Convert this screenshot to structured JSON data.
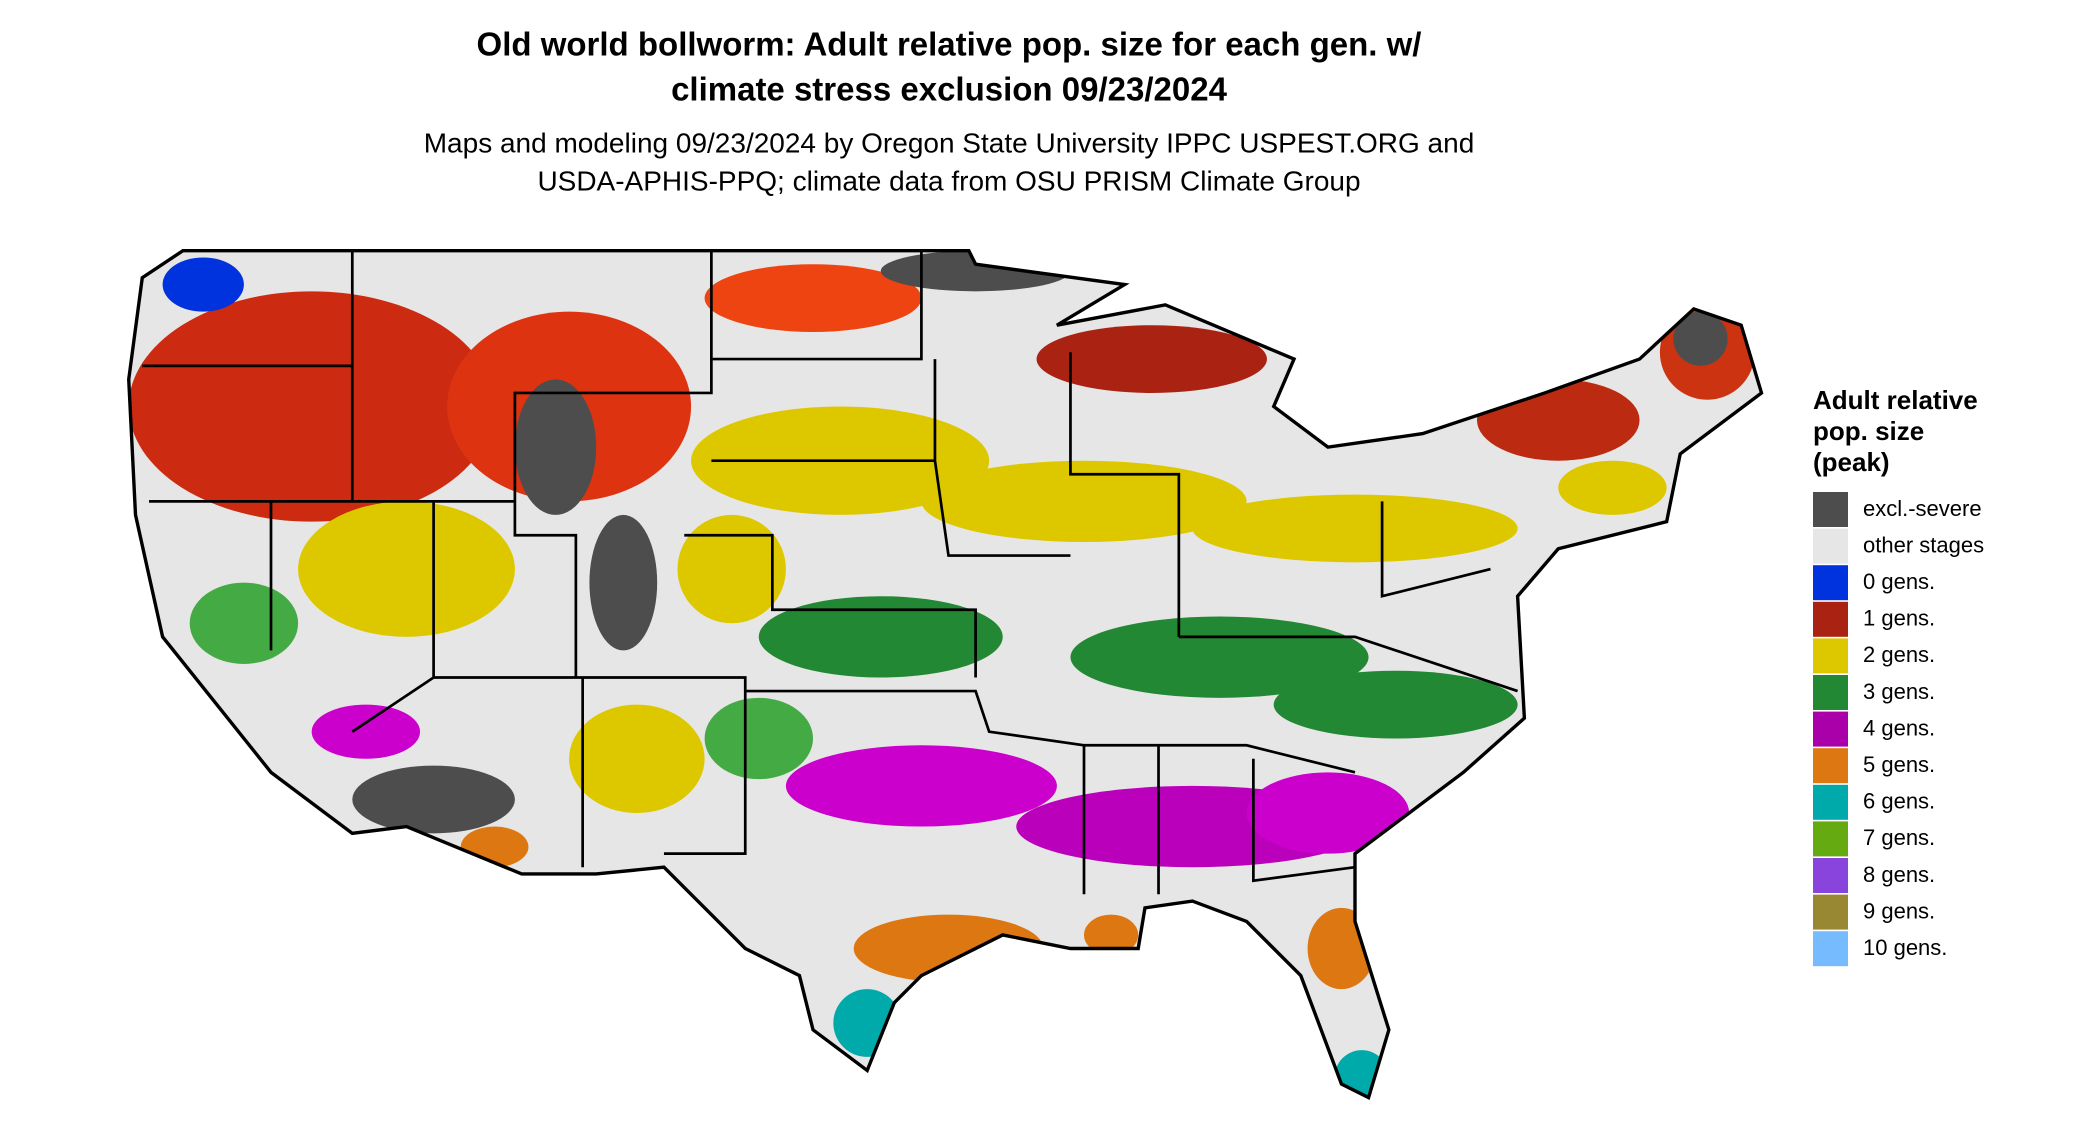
{
  "title": [
    "Old world bollworm: Adult relative pop. size for each gen. w/",
    "climate stress exclusion 09/23/2024"
  ],
  "subtitle": [
    "Maps and modeling 09/23/2024 by Oregon State University IPPC USPEST.ORG and",
    "USDA-APHIS-PPQ; climate data from OSU PRISM Climate Group"
  ],
  "legend": {
    "title": [
      "Adult relative",
      "pop. size",
      "(peak)"
    ],
    "items": [
      {
        "label": "excl.-severe",
        "color": "#4d4d4d"
      },
      {
        "label": "other stages",
        "color": "#e6e6e6"
      },
      {
        "label": "0 gens.",
        "color": "#0033dd"
      },
      {
        "label": "1 gens.",
        "color": "#aa2211"
      },
      {
        "label": "2 gens.",
        "color": "#ddc800"
      },
      {
        "label": "3 gens.",
        "color": "#228833"
      },
      {
        "label": "4 gens.",
        "color": "#aa00aa"
      },
      {
        "label": "5 gens.",
        "color": "#dd7711"
      },
      {
        "label": "6 gens.",
        "color": "#00aaaa"
      },
      {
        "label": "7 gens.",
        "color": "#66aa11"
      },
      {
        "label": "8 gens.",
        "color": "#8844dd"
      },
      {
        "label": "9 gens.",
        "color": "#998833"
      },
      {
        "label": "10 gens.",
        "color": "#77bbff"
      }
    ]
  }
}
